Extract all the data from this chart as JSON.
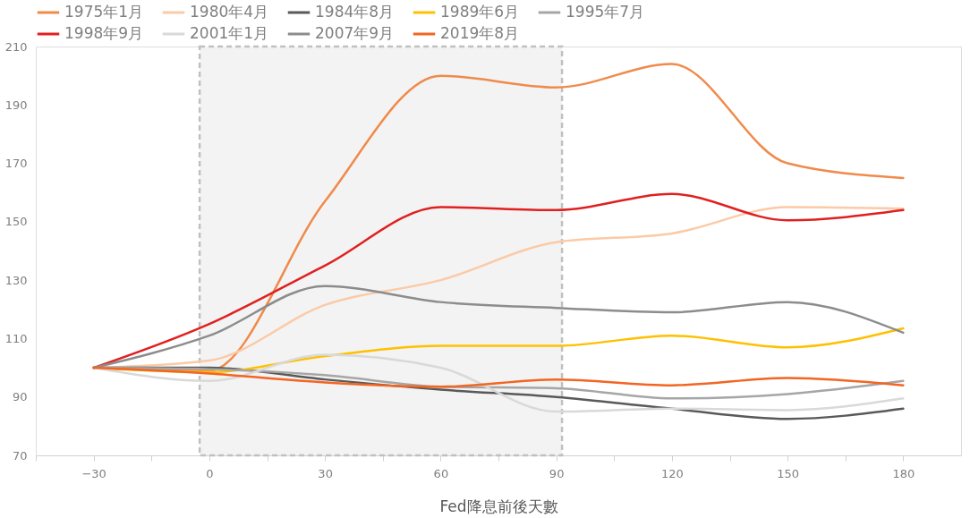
{
  "chart_data": {
    "type": "line",
    "xlabel": "Fed降息前後天數",
    "x": [
      -30,
      0,
      30,
      60,
      90,
      120,
      150,
      180
    ],
    "xlim": [
      -45,
      195
    ],
    "xticks": [
      {
        "value": -45,
        "label": null
      },
      -30,
      {
        "value": -15,
        "label": null
      },
      0,
      {
        "value": 15,
        "label": null
      },
      30,
      {
        "value": 45,
        "label": null
      },
      60,
      {
        "value": 75,
        "label": null
      },
      90,
      {
        "value": 105,
        "label": null
      },
      120,
      {
        "value": 135,
        "label": null
      },
      150,
      {
        "value": 165,
        "label": null
      },
      180
    ],
    "ylim": [
      70,
      210
    ],
    "yticks": [
      70,
      90,
      110,
      130,
      150,
      170,
      190,
      210
    ],
    "grid": false,
    "legend": "top",
    "marker": "none",
    "line_style": "solid",
    "bands": [
      {
        "axis": "x",
        "from": -2.5,
        "to": 91.5,
        "color": "#f3f3f3"
      }
    ],
    "series": [
      {
        "name": "1975年1月",
        "color": "#f08a4b",
        "values": [
          100,
          99,
          157,
          200,
          196,
          204,
          170,
          165
        ]
      },
      {
        "name": "1980年4月",
        "color": "#fbcaa6",
        "values": [
          100,
          102.5,
          121.5,
          130,
          143,
          146,
          155,
          154.5
        ]
      },
      {
        "name": "1984年8月",
        "color": "#595959",
        "values": [
          100,
          100,
          96,
          92.5,
          90,
          86,
          82.5,
          86
        ]
      },
      {
        "name": "1989年6月",
        "color": "#ffc000",
        "values": [
          100,
          98.5,
          104,
          107.5,
          107.5,
          111,
          107,
          113.5
        ]
      },
      {
        "name": "1995年7月",
        "color": "#a6a6a6",
        "values": [
          100,
          99.5,
          97.5,
          93.5,
          93,
          89.5,
          91,
          95.5
        ]
      },
      {
        "name": "1998年9月",
        "color": "#e02020",
        "values": [
          100,
          115,
          135,
          155,
          154,
          159.5,
          150.5,
          154
        ]
      },
      {
        "name": "2001年1月",
        "color": "#d9d9d9",
        "values": [
          100,
          95.5,
          104.5,
          100,
          85,
          86,
          85.5,
          89.5
        ]
      },
      {
        "name": "2007年9月",
        "color": "#8c8c8c",
        "values": [
          100,
          111,
          128,
          122.5,
          120.5,
          119,
          122.5,
          112
        ]
      },
      {
        "name": "2019年8月",
        "color": "#f26522",
        "values": [
          100,
          98,
          95,
          93.5,
          96,
          94,
          96.5,
          94
        ]
      }
    ]
  }
}
